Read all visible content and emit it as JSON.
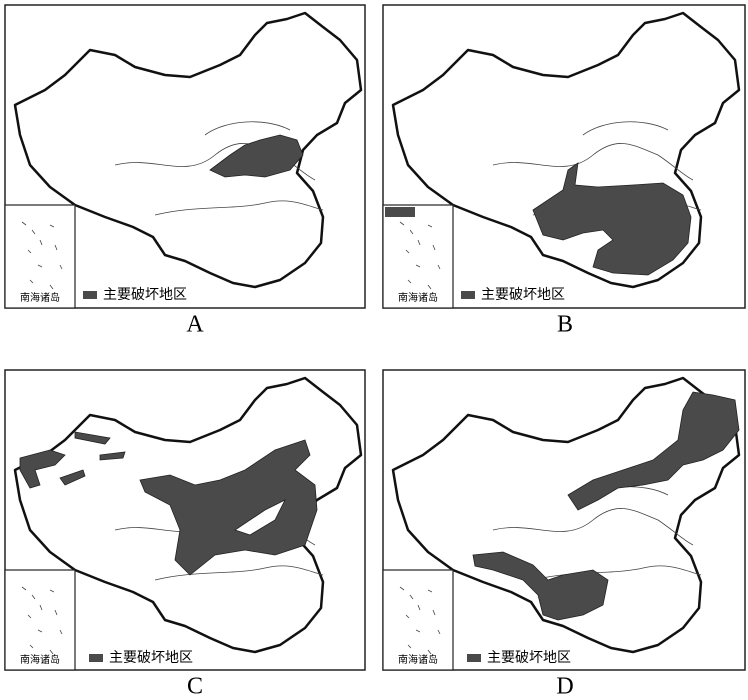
{
  "panels": [
    {
      "label": "A",
      "inset_label": "南海诸岛",
      "legend": "主要破坏地区"
    },
    {
      "label": "B",
      "inset_label": "南海诸岛",
      "legend": "主要破坏地区"
    },
    {
      "label": "C",
      "inset_label": "南海诸岛",
      "legend": "主要破坏地区"
    },
    {
      "label": "D",
      "inset_label": "南海诸岛",
      "legend": "主要破坏地区"
    }
  ]
}
